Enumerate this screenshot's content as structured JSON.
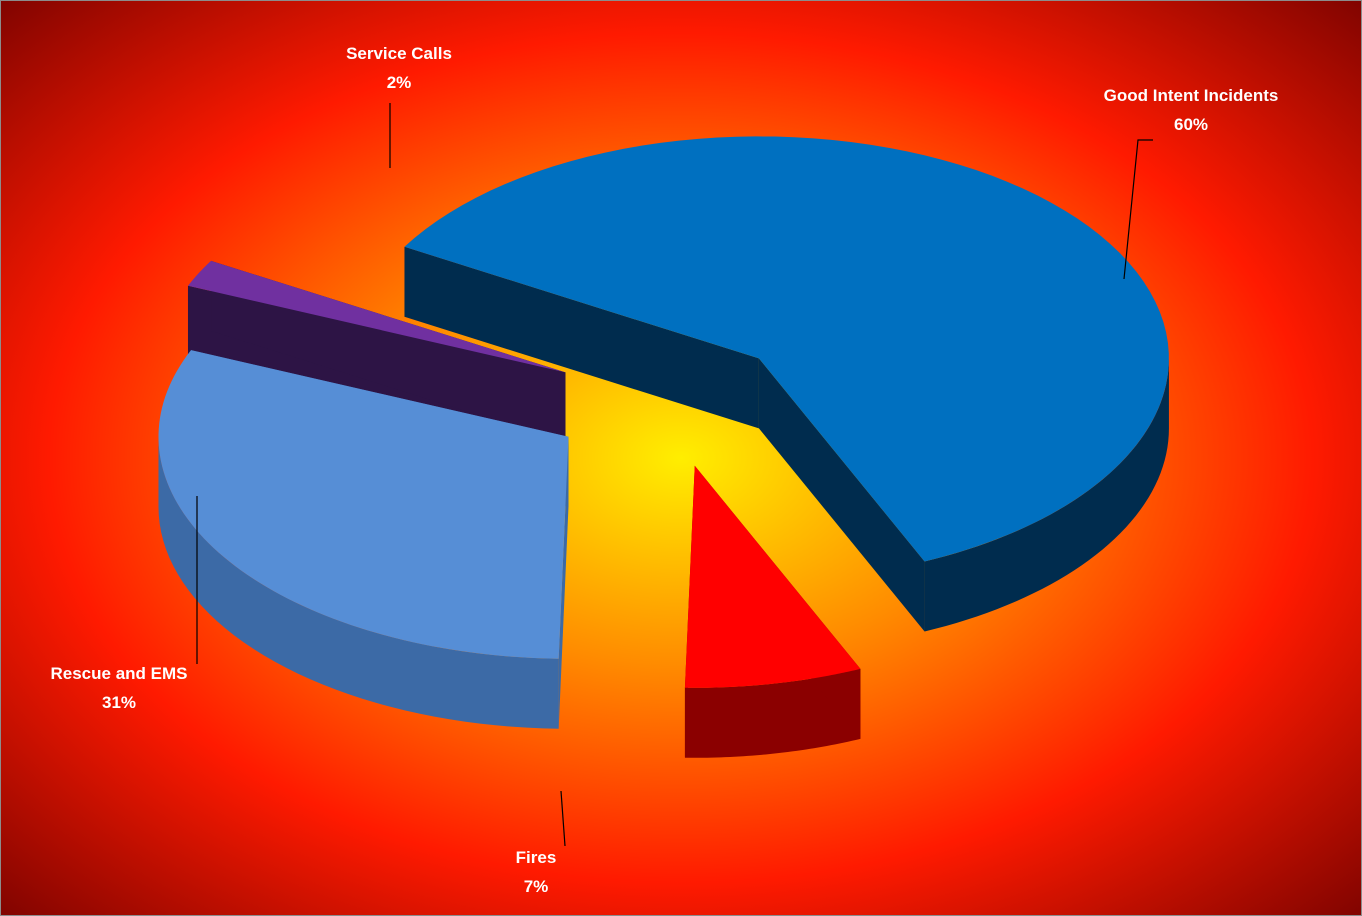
{
  "chart_data": {
    "type": "pie",
    "style": "3d-exploded",
    "slices": [
      {
        "name": "Good Intent Incidents",
        "label": "Good Intent Incidents",
        "value": 60,
        "percent_label": "60%",
        "color": "#0070c0",
        "side_color": "#002c4e"
      },
      {
        "name": "Fires",
        "label": "Fires",
        "value": 7,
        "percent_label": "7%",
        "color": "#ff0000",
        "side_color": "#8b0000"
      },
      {
        "name": "Rescue and EMS",
        "label": "Rescue and EMS",
        "value": 31,
        "percent_label": "31%",
        "color": "#568ed6",
        "side_color": "#3c6aa6"
      },
      {
        "name": "Service Calls",
        "label": "Service  Calls",
        "value": 2,
        "percent_label": "2%",
        "color": "#7030a0",
        "side_color": "#2d1445"
      }
    ],
    "background": {
      "center_color": "#ffee00",
      "mid_color": "#ff8c00",
      "outer_color": "#ff1a00",
      "corner_color": "#6b0000"
    }
  }
}
